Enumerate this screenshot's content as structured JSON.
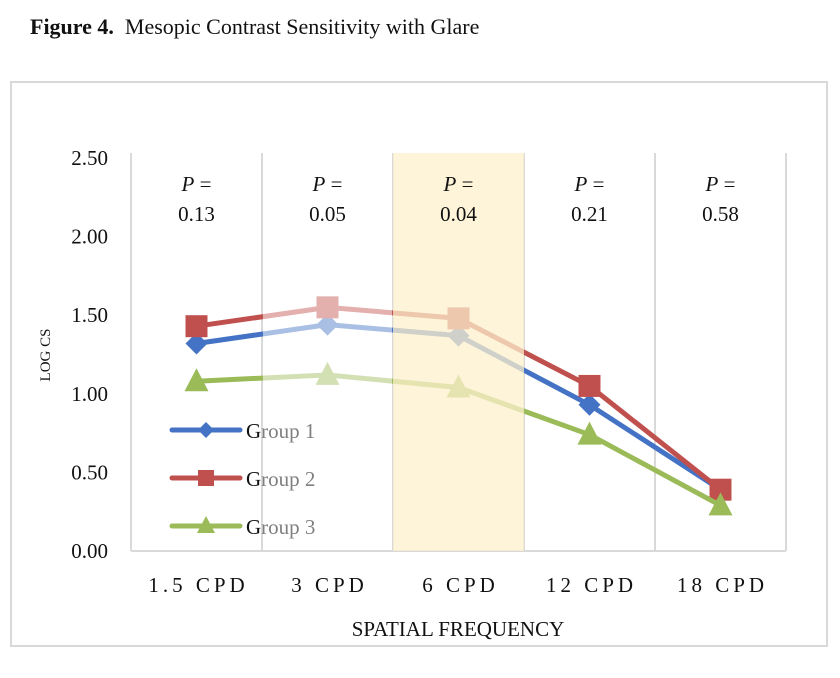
{
  "figure": {
    "label": "Figure 4.",
    "caption": "Mesopic Contrast Sensitivity with Glare"
  },
  "chart_data": {
    "type": "line",
    "title": "Mesopic Contrast Sensitivity with Glare",
    "xlabel": "SPATIAL FREQUENCY",
    "ylabel": "LOG CS",
    "categories": [
      "1.5 CPD",
      "3 CPD",
      "6 CPD",
      "12 CPD",
      "18 CPD"
    ],
    "ylim": [
      0,
      2.5
    ],
    "yticks": [
      "0.00",
      "0.50",
      "1.00",
      "1.50",
      "2.00",
      "2.50"
    ],
    "ytick_values": [
      0,
      0.5,
      1.0,
      1.5,
      2.0,
      2.5
    ],
    "grid": "vertical category separators",
    "legend_position": "bottom-left inside plot",
    "series": [
      {
        "name": "Group 1",
        "color": "#4472c4",
        "marker": "diamond",
        "values": [
          1.32,
          1.44,
          1.37,
          0.93,
          0.39
        ]
      },
      {
        "name": "Group 2",
        "color": "#c0504d",
        "marker": "square",
        "values": [
          1.43,
          1.55,
          1.48,
          1.05,
          0.39
        ]
      },
      {
        "name": "Group 3",
        "color": "#9bbb59",
        "marker": "triangle",
        "values": [
          1.08,
          1.12,
          1.04,
          0.74,
          0.29
        ]
      }
    ],
    "annotations": [
      {
        "category": "1.5 CPD",
        "label": "P =",
        "value": "0.13"
      },
      {
        "category": "3 CPD",
        "label": "P =",
        "value": "0.05"
      },
      {
        "category": "6 CPD",
        "label": "P =",
        "value": "0.04"
      },
      {
        "category": "12 CPD",
        "label": "P =",
        "value": "0.21"
      },
      {
        "category": "18 CPD",
        "label": "P =",
        "value": "0.58"
      }
    ],
    "highlighted_category": "6 CPD",
    "highlight_color": "#fdf0cc",
    "faded_category": "3 CPD"
  }
}
